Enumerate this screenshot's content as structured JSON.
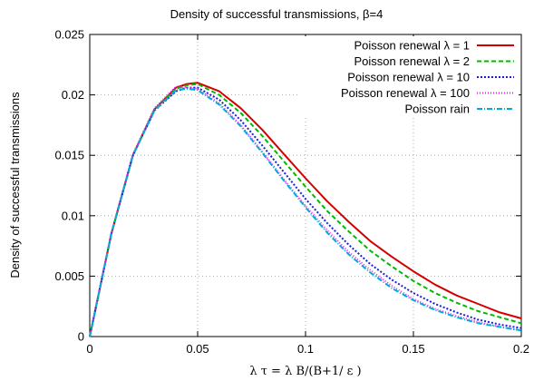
{
  "chart_data": {
    "type": "line",
    "title": "Density of successful transmissions, β=4",
    "xlabel": "λ τ = λ B/(B+1/ ε )",
    "ylabel": "Density of successful transmissions",
    "xlim": [
      0,
      0.2
    ],
    "ylim": [
      0,
      0.025
    ],
    "x_ticks": [
      "0",
      "0.05",
      "0.1",
      "0.15",
      "0.2"
    ],
    "y_ticks": [
      "0",
      "0.005",
      "0.01",
      "0.015",
      "0.02",
      "0.025"
    ],
    "grid": "dotted",
    "legend_position": "top-right",
    "x": [
      0,
      0.01,
      0.02,
      0.03,
      0.04,
      0.045,
      0.05,
      0.06,
      0.07,
      0.08,
      0.09,
      0.1,
      0.11,
      0.12,
      0.13,
      0.14,
      0.15,
      0.16,
      0.17,
      0.18,
      0.19,
      0.2
    ],
    "series": [
      {
        "name": "Poisson renewal λ = 1",
        "color": "#d40000",
        "dash": "solid",
        "values": [
          0,
          0.0085,
          0.015,
          0.0188,
          0.0206,
          0.0209,
          0.021,
          0.0203,
          0.0189,
          0.0171,
          0.0151,
          0.0131,
          0.0112,
          0.0095,
          0.0079,
          0.0066,
          0.0054,
          0.0043,
          0.0034,
          0.0027,
          0.002,
          0.0015
        ]
      },
      {
        "name": "Poisson renewal  λ = 2",
        "color": "#00bb00",
        "dash": "5,3",
        "values": [
          0,
          0.0085,
          0.015,
          0.0188,
          0.0205,
          0.0208,
          0.0209,
          0.02,
          0.0185,
          0.0166,
          0.0145,
          0.0124,
          0.0104,
          0.0087,
          0.0071,
          0.0058,
          0.0046,
          0.0036,
          0.0028,
          0.0021,
          0.0016,
          0.0011
        ]
      },
      {
        "name": "Poisson renewal  λ = 10",
        "color": "#1e1ed8",
        "dash": "2,2",
        "values": [
          0,
          0.0085,
          0.015,
          0.0187,
          0.0203,
          0.0206,
          0.0206,
          0.0196,
          0.0179,
          0.0158,
          0.0136,
          0.0114,
          0.0094,
          0.0076,
          0.006,
          0.0047,
          0.0036,
          0.0027,
          0.002,
          0.0014,
          0.001,
          0.0007
        ]
      },
      {
        "name": "Poisson renewal  λ = 100",
        "color": "#ee22ee",
        "dash": "1,2",
        "values": [
          0,
          0.0086,
          0.0151,
          0.0189,
          0.0207,
          0.0206,
          0.0205,
          0.0193,
          0.0175,
          0.0153,
          0.013,
          0.0108,
          0.0088,
          0.007,
          0.0055,
          0.0042,
          0.0031,
          0.0023,
          0.0017,
          0.0012,
          0.0008,
          0.0005
        ]
      },
      {
        "name": "Poisson rain",
        "color": "#00aadd",
        "dash": "6,2,1,2",
        "values": [
          0,
          0.0085,
          0.015,
          0.0187,
          0.0204,
          0.0205,
          0.0204,
          0.0192,
          0.0174,
          0.0152,
          0.0129,
          0.0107,
          0.0086,
          0.0068,
          0.0053,
          0.004,
          0.003,
          0.0022,
          0.0016,
          0.0011,
          0.0008,
          0.0005
        ]
      }
    ]
  }
}
